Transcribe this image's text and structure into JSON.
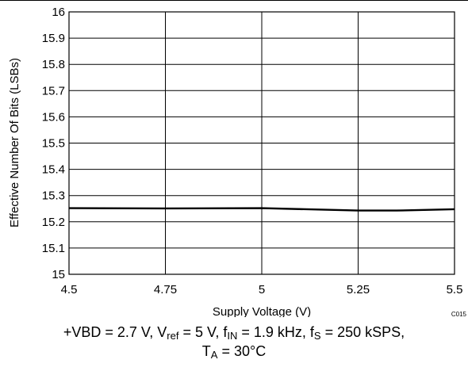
{
  "chart_data": {
    "type": "line",
    "xlabel": "Supply Voltage (V)",
    "ylabel": "Effective Number Of Bits (LSBs)",
    "xlim": [
      4.5,
      5.5
    ],
    "ylim": [
      15,
      16
    ],
    "xticks": [
      "4.5",
      "4.75",
      "5",
      "5.25",
      "5.5"
    ],
    "yticks": [
      "15",
      "15.1",
      "15.2",
      "15.3",
      "15.4",
      "15.5",
      "15.6",
      "15.7",
      "15.8",
      "15.9",
      "16"
    ],
    "grid": true,
    "series": [
      {
        "x": [
          4.5,
          4.75,
          5.0,
          5.25,
          5.35,
          5.5
        ],
        "values": [
          15.252,
          15.251,
          15.252,
          15.243,
          15.243,
          15.248
        ]
      }
    ],
    "code": "C015",
    "line_color": "#000000"
  },
  "caption": {
    "vbd": "+VBD = 2.7 V, V",
    "vref_sub": "ref",
    "vref_val": " = 5 V, f",
    "fin_sub": "IN",
    "fin_val": " = 1.9 kHz, f",
    "fs_sub": "S",
    "fs_val": " = 250 kSPS,",
    "ta": "T",
    "ta_sub": "A",
    "ta_val": " = 30°C"
  }
}
